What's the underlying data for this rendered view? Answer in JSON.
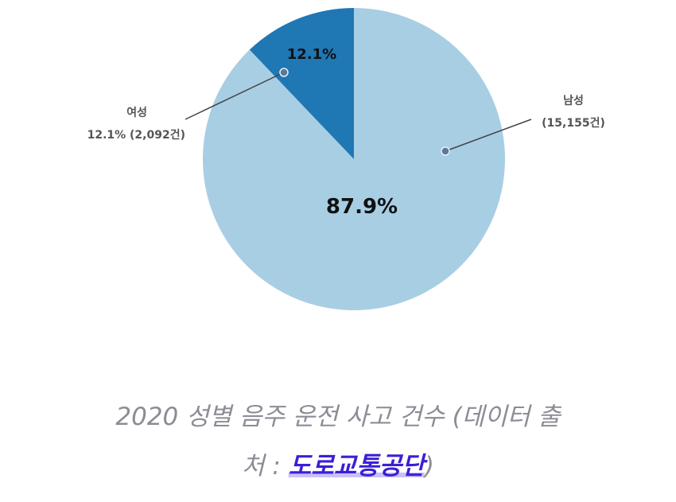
{
  "chart_data": {
    "type": "pie",
    "start_angle_deg": 0,
    "direction": "clockwise",
    "slices": [
      {
        "label": "남성",
        "value": 15155,
        "percent": 87.9,
        "percent_label": "87.9%",
        "callout_line2": "(15,155건)",
        "color": "#a8cee4"
      },
      {
        "label": "여성",
        "value": 2092,
        "percent": 12.1,
        "percent_label": "12.1%",
        "callout_line2": "12.1% (2,092건)",
        "color": "#1f77b4"
      }
    ],
    "colors": {
      "male": "#a8cee4",
      "female": "#1f77b4",
      "leader_line": "#444444",
      "marker_fill": "#5b7896",
      "marker_stroke": "#e8eef4"
    }
  },
  "caption": {
    "line1": "2020 성별 음주 운전 사고 건수 (데이터 출",
    "line2_prefix": "처 : ",
    "source_link": "도로교통공단",
    "line2_suffix": ")"
  }
}
